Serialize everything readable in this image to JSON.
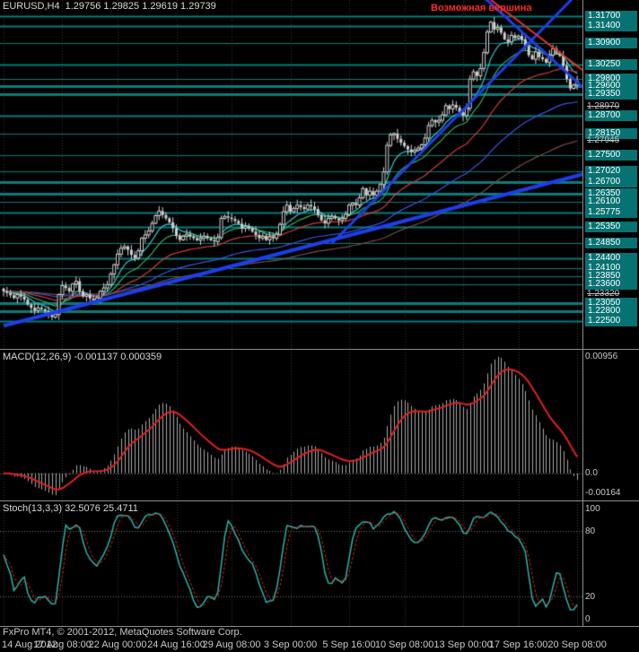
{
  "header": {
    "symbol": "EURUSD,H4",
    "quote": "1.29756 1.29825 1.29619 1.29739"
  },
  "footer": {
    "copyright": "FxPro MT4, © 2001-2012, MetaQuotes Software Corp."
  },
  "time_axis": [
    {
      "bar": 0,
      "label": "14 Aug 2012"
    },
    {
      "bar": 17,
      "label": "17 Aug 08:00"
    },
    {
      "bar": 33,
      "label": "22 Aug 00:00"
    },
    {
      "bar": 50,
      "label": "24 Aug 16:00"
    },
    {
      "bar": 66,
      "label": "29 Aug 08:00"
    },
    {
      "bar": 83,
      "label": "3 Sep 00:00"
    },
    {
      "bar": 100,
      "label": "5 Sep 16:00"
    },
    {
      "bar": 116,
      "label": "10 Sep 08:00"
    },
    {
      "bar": 133,
      "label": "13 Sep 00:00"
    },
    {
      "bar": 149,
      "label": "17 Sep 16:00"
    },
    {
      "bar": 166,
      "label": "20 Sep 08:00"
    }
  ],
  "chart_data": {
    "type": "candlestick",
    "symbol": "EURUSD",
    "timeframe": "H4",
    "annotation": "Возможная вершина",
    "x_range": [
      "14 Aug 2012 00:00",
      "20 Sep 2012 08:00"
    ],
    "y_range": [
      1.2225,
      1.3219
    ],
    "last_bar": {
      "open": 1.29756,
      "high": 1.29825,
      "low": 1.29619,
      "close": 1.29739
    },
    "closes": [
      1.234,
      1.2335,
      1.2328,
      1.232,
      1.233,
      1.2324,
      1.2315,
      1.23,
      1.229,
      1.2282,
      1.229,
      1.2286,
      1.228,
      1.227,
      1.2262,
      1.227,
      1.233,
      1.2357,
      1.235,
      1.234,
      1.2362,
      1.237,
      1.234,
      1.2325,
      1.233,
      1.2318,
      1.231,
      1.232,
      1.234,
      1.235,
      1.236,
      1.2392,
      1.242,
      1.2452,
      1.247,
      1.2475,
      1.2465,
      1.245,
      1.244,
      1.2462,
      1.25,
      1.251,
      1.2522,
      1.2545,
      1.2568,
      1.2582,
      1.257,
      1.256,
      1.2548,
      1.253,
      1.2508,
      1.2495,
      1.2506,
      1.2512,
      1.2505,
      1.25,
      1.2494,
      1.25,
      1.2506,
      1.25,
      1.2494,
      1.249,
      1.2502,
      1.256,
      1.2566,
      1.2562,
      1.2558,
      1.2552,
      1.2544,
      1.253,
      1.2536,
      1.253,
      1.252,
      1.251,
      1.25,
      1.2506,
      1.2495,
      1.2504,
      1.25,
      1.2512,
      1.2542,
      1.258,
      1.26,
      1.258,
      1.259,
      1.26,
      1.2594,
      1.2588,
      1.26,
      1.2596,
      1.2588,
      1.257,
      1.2554,
      1.2545,
      1.256,
      1.2566,
      1.256,
      1.2554,
      1.256,
      1.2572,
      1.26,
      1.2606,
      1.26,
      1.2622,
      1.265,
      1.263,
      1.2642,
      1.263,
      1.2642,
      1.2662,
      1.27,
      1.278,
      1.2812,
      1.2816,
      1.28,
      1.2788,
      1.2778,
      1.2768,
      1.276,
      1.2766,
      1.2772,
      1.2782,
      1.2802,
      1.284,
      1.2856,
      1.285,
      1.2856,
      1.2872,
      1.29,
      1.289,
      1.2902,
      1.2894,
      1.288,
      1.287,
      1.2892,
      1.298,
      1.3002,
      1.299,
      1.3012,
      1.306,
      1.3122,
      1.3152,
      1.313,
      1.3136,
      1.312,
      1.31,
      1.3092,
      1.3112,
      1.3104,
      1.311,
      1.31,
      1.308,
      1.3052,
      1.304,
      1.3062,
      1.3046,
      1.304,
      1.303,
      1.3052,
      1.3072,
      1.306,
      1.305,
      1.302,
      1.298,
      1.2952,
      1.2962,
      1.29739
    ],
    "h_levels": [
      {
        "price": 1.317,
        "label": "1.31700",
        "w": 2
      },
      {
        "price": 1.314,
        "label": "1.31400",
        "w": 2
      },
      {
        "price": 1.309,
        "label": "1.30900",
        "w": 1
      },
      {
        "price": 1.3025,
        "label": "1.30250",
        "w": 2
      },
      {
        "price": 1.298,
        "label": "1.29800",
        "w": 1
      },
      {
        "price": 1.296,
        "label": "1.29600",
        "w": 3
      },
      {
        "price": 1.2935,
        "label": "1.29350",
        "w": 3
      },
      {
        "price": 1.287,
        "label": "1.28700",
        "w": 2
      },
      {
        "price": 1.2815,
        "label": "1.28150",
        "w": 1
      },
      {
        "price": 1.275,
        "label": "1.27500",
        "w": 1
      },
      {
        "price": 1.2702,
        "label": "1.27020",
        "w": 1
      },
      {
        "price": 1.267,
        "label": "1.26700",
        "w": 3
      },
      {
        "price": 1.2635,
        "label": "1.26350",
        "w": 3
      },
      {
        "price": 1.261,
        "label": "1.26100",
        "w": 1
      },
      {
        "price": 1.25775,
        "label": "1.25775",
        "w": 2
      },
      {
        "price": 1.2535,
        "label": "1.25350",
        "w": 2
      },
      {
        "price": 1.2485,
        "label": "1.24850",
        "w": 1
      },
      {
        "price": 1.244,
        "label": "1.24400",
        "w": 2
      },
      {
        "price": 1.241,
        "label": "1.24100",
        "w": 1
      },
      {
        "price": 1.2385,
        "label": "1.23850",
        "w": 1
      },
      {
        "price": 1.236,
        "label": "1.23600",
        "w": 1
      },
      {
        "price": 1.2305,
        "label": "1.23050",
        "w": 3
      },
      {
        "price": 1.228,
        "label": "1.22800",
        "w": 3
      },
      {
        "price": 1.225,
        "label": "1.22500",
        "w": 2
      }
    ],
    "scale_plain": [
      {
        "price": 1.2897,
        "label": "1.28970"
      },
      {
        "price": 1.27945,
        "label": "1.27945"
      },
      {
        "price": 1.2332,
        "label": "1.23320"
      }
    ],
    "trendlines": [
      {
        "b1": 0,
        "p1": 1.2236,
        "b2": 175,
        "p2": 1.2713,
        "color": "#1c3fe8",
        "w": 4
      },
      {
        "b1": 95,
        "p1": 1.2484,
        "b2": 165,
        "p2": 1.3227,
        "color": "#1c3fe8",
        "w": 3
      },
      {
        "b1": 136,
        "p1": 1.3255,
        "b2": 172,
        "p2": 1.2915,
        "color": "#1c3fe8",
        "w": 3
      },
      {
        "b1": 141,
        "p1": 1.3219,
        "b2": 172,
        "p2": 1.2972,
        "color": "#e03030",
        "w": 2
      }
    ],
    "moving_averages": [
      {
        "period": 8,
        "color": "#30c9c9"
      },
      {
        "period": 16,
        "color": "#2eaf5b"
      },
      {
        "period": 34,
        "color": "#d43a3a"
      },
      {
        "period": 68,
        "color": "#3c55e0"
      },
      {
        "period": 120,
        "color": "#7a4a4a"
      }
    ],
    "indicators": [
      {
        "name": "MACD",
        "params": "12,26,9",
        "label": "MACD(12,26,9) -0.001137 0.000359",
        "current_values": [
          -0.001137,
          0.000359
        ],
        "scale": [
          {
            "v": 0.00956,
            "label": "0.00956"
          },
          {
            "v": 0,
            "label": "0.0"
          },
          {
            "v": -0.00164,
            "label": "-0.00164"
          }
        ]
      },
      {
        "name": "Stochastic",
        "params": "13,3,3",
        "label": "Stoch(13,3,3) 32.5076 25.4711",
        "current_values": [
          32.5076,
          25.4711
        ],
        "levels": [
          80,
          20
        ],
        "scale": [
          {
            "v": 100,
            "label": "100"
          },
          {
            "v": 80,
            "label": "80"
          },
          {
            "v": 20,
            "label": "20"
          },
          {
            "v": 0,
            "label": "0"
          }
        ]
      }
    ],
    "colors": {
      "level": "#0b7b7b",
      "candle": "#d0d0d0",
      "histogram": "#a8a8a8",
      "signal": "#e02020",
      "stoch_main": "#2ab4aa",
      "grid": "#3a3a3a",
      "tag_bg": "#067272",
      "scale_text": "#c8c8c8"
    }
  }
}
